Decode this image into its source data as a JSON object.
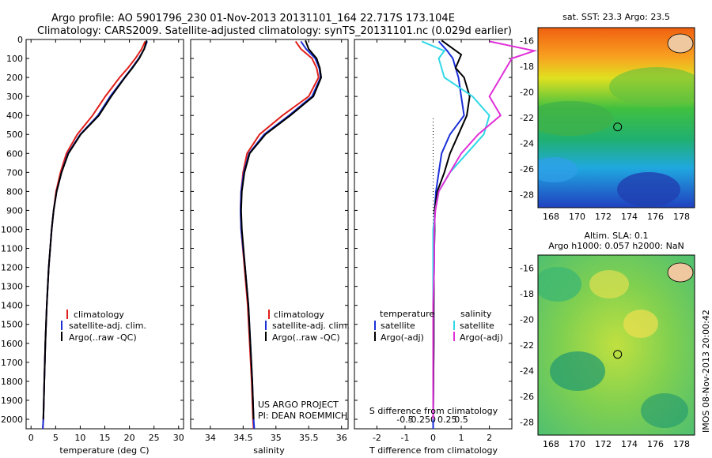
{
  "header": {
    "line1": "Argo profile: AO 5901796_230 01-Nov-2013 20131101_164 22.717S 173.104E",
    "line2": "Climatology: CARS2009. Satellite-adjusted climatology: synTS_20131101.nc (0.029d earlier)"
  },
  "credit": {
    "project": "US ARGO PROJECT",
    "pi": "PI: DEAN ROEMMICH",
    "stamp": "IMOS 08-Nov-2013 20:00:42"
  },
  "colors": {
    "climatology": "#e0201a",
    "satellite": "#1a2fd8",
    "argo": "#000000",
    "satellite_s": "#30d8e8",
    "argo_s": "#e030d8"
  },
  "chart_data": [
    {
      "type": "line",
      "id": "temperature",
      "xlabel": "temperature (deg C)",
      "xlim": [
        -1,
        31
      ],
      "ylim": [
        2050,
        0
      ],
      "x_ticks": [
        0,
        5,
        10,
        15,
        20,
        25,
        30
      ],
      "y_ticks": [
        0,
        100,
        200,
        300,
        400,
        500,
        600,
        700,
        800,
        900,
        1000,
        1100,
        1200,
        1300,
        1400,
        1500,
        1600,
        1700,
        1800,
        1900,
        2000
      ],
      "legend": [
        "climatology",
        "satellite-adj. clim.",
        "Argo(..raw -QC)"
      ],
      "series": [
        {
          "name": "climatology",
          "color_key": "climatology",
          "depth": [
            10,
            50,
            100,
            150,
            200,
            300,
            400,
            500,
            600,
            700,
            800,
            900,
            1000,
            1200,
            1400,
            1600,
            1800,
            2000,
            2050
          ],
          "values": [
            23.2,
            22.5,
            21.2,
            19.7,
            18.0,
            15.1,
            12.5,
            9.4,
            7.2,
            6.0,
            5.1,
            4.6,
            4.2,
            3.6,
            3.2,
            2.9,
            2.7,
            2.5,
            2.4
          ]
        },
        {
          "name": "satellite-adj. clim.",
          "color_key": "satellite",
          "depth": [
            10,
            50,
            100,
            150,
            200,
            300,
            400,
            500,
            600,
            700,
            800,
            900,
            1000,
            1200,
            1400,
            1600,
            1800,
            2000,
            2050
          ],
          "values": [
            23.6,
            23.0,
            21.9,
            20.5,
            19.0,
            16.1,
            13.6,
            10.0,
            7.5,
            6.2,
            5.2,
            4.6,
            4.2,
            3.6,
            3.2,
            2.9,
            2.7,
            2.5,
            2.4
          ]
        },
        {
          "name": "Argo(..raw -QC)",
          "color_key": "argo",
          "depth": [
            5,
            50,
            100,
            150,
            200,
            300,
            400,
            500,
            600,
            700,
            800,
            900,
            1000,
            1200,
            1400,
            1600,
            1800,
            2000
          ],
          "values": [
            23.5,
            23.0,
            22.0,
            20.6,
            19.1,
            16.3,
            13.8,
            10.1,
            7.6,
            6.2,
            5.2,
            4.6,
            4.2,
            3.6,
            3.2,
            2.9,
            2.7,
            2.5
          ]
        }
      ]
    },
    {
      "type": "line",
      "id": "salinity",
      "xlabel": "salinity",
      "xlim": [
        33.7,
        36.1
      ],
      "ylim": [
        2050,
        0
      ],
      "x_ticks": [
        34,
        34.5,
        35,
        35.5,
        36
      ],
      "legend": [
        "climatology",
        "satellite-adj. clim.",
        "Argo(..raw -QC)"
      ],
      "series": [
        {
          "name": "climatology",
          "color_key": "climatology",
          "depth": [
            10,
            50,
            100,
            150,
            200,
            300,
            400,
            500,
            600,
            700,
            800,
            900,
            1000,
            1200,
            1400,
            1600,
            1800,
            2000,
            2050
          ],
          "values": [
            35.3,
            35.38,
            35.55,
            35.62,
            35.65,
            35.5,
            35.1,
            34.75,
            34.56,
            34.5,
            34.47,
            34.46,
            34.47,
            34.52,
            34.57,
            34.6,
            34.63,
            34.65,
            34.66
          ]
        },
        {
          "name": "satellite-adj. clim.",
          "color_key": "satellite",
          "depth": [
            10,
            50,
            100,
            150,
            200,
            300,
            400,
            500,
            600,
            700,
            800,
            900,
            1000,
            1200,
            1400,
            1600,
            1800,
            2000,
            2050
          ],
          "values": [
            35.38,
            35.46,
            35.6,
            35.66,
            35.68,
            35.55,
            35.2,
            34.82,
            34.59,
            34.51,
            34.47,
            34.46,
            34.47,
            34.53,
            34.58,
            34.61,
            34.64,
            34.66,
            34.67
          ]
        },
        {
          "name": "Argo(..raw -QC)",
          "color_key": "argo",
          "depth": [
            5,
            50,
            100,
            150,
            200,
            300,
            400,
            500,
            600,
            700,
            800,
            900,
            1000,
            1200,
            1400,
            1600,
            1800,
            2000
          ],
          "values": [
            35.45,
            35.5,
            35.62,
            35.67,
            35.69,
            35.57,
            35.22,
            34.84,
            34.6,
            34.52,
            34.48,
            34.47,
            34.48,
            34.53,
            34.58,
            34.61,
            34.64,
            34.66
          ]
        }
      ]
    },
    {
      "type": "line",
      "id": "difference",
      "xlabel": "T difference from climatology",
      "xlabel2": "S difference from climatology",
      "xlim": [
        -2.8,
        2.8
      ],
      "ylim": [
        2050,
        0
      ],
      "x_ticks": [
        -2,
        -1,
        0,
        1,
        2
      ],
      "s_ticks": [
        "-0.5",
        "-0.25",
        "0",
        "0.25",
        "0.5"
      ],
      "legend_t_title": "temperature",
      "legend_s_title": "salinity",
      "legend_t": [
        "satellite",
        "Argo(-adj)"
      ],
      "legend_s": [
        "satellite",
        "Argo(-adj)"
      ],
      "series": [
        {
          "name": "satellite",
          "color_key": "satellite",
          "depth": [
            10,
            60,
            100,
            150,
            200,
            300,
            400,
            500,
            600,
            700,
            800,
            900,
            1000,
            1200,
            1400,
            1600,
            1800,
            2000,
            2050
          ],
          "values": [
            0.2,
            0.5,
            0.7,
            0.8,
            0.9,
            1.0,
            1.1,
            0.6,
            0.3,
            0.2,
            0.1,
            0.05,
            0.05,
            0.03,
            0.02,
            0.02,
            0.01,
            0.0,
            0.0
          ]
        },
        {
          "name": "Argo(-adj)",
          "color_key": "argo",
          "depth": [
            5,
            80,
            150,
            200,
            300,
            400,
            500,
            600,
            700,
            800,
            900,
            1000,
            1200,
            1400,
            1600,
            1800,
            2000
          ],
          "values": [
            0.3,
            1.0,
            0.8,
            1.1,
            1.3,
            1.2,
            0.9,
            0.6,
            0.4,
            0.15,
            0.05,
            0.05,
            0.03,
            0.02,
            0.02,
            0.01,
            0.0
          ]
        },
        {
          "name": "satellite",
          "color_key": "satellite_s",
          "depth": [
            10,
            60,
            100,
            200,
            300,
            400,
            500,
            600,
            700,
            800,
            900,
            1000,
            1200,
            1400,
            1600,
            1800,
            2000
          ],
          "values": [
            -0.1,
            0.1,
            0.05,
            0.1,
            0.35,
            0.5,
            0.45,
            0.3,
            0.15,
            0.05,
            0.02,
            0.0,
            0.0,
            0.0,
            0.0,
            0.0,
            0.0
          ]
        },
        {
          "name": "Argo(-adj)",
          "color_key": "argo_s",
          "depth": [
            10,
            60,
            100,
            200,
            300,
            400,
            500,
            600,
            700,
            800,
            900,
            1000,
            1200,
            1400,
            1600,
            1800,
            2000
          ],
          "values": [
            0.5,
            0.9,
            0.7,
            0.6,
            0.5,
            0.6,
            0.4,
            0.25,
            0.15,
            0.05,
            0.02,
            0.01,
            0.01,
            0.0,
            0.0,
            0.0,
            0.0
          ]
        }
      ]
    },
    {
      "type": "heatmap",
      "id": "sst_map",
      "title": "sat. SST: 23.3 Argo: 23.5",
      "x_ticks": [
        "168",
        "170",
        "172",
        "174",
        "176",
        "178"
      ],
      "y_ticks": [
        "-16",
        "-18",
        "-20",
        "-22",
        "-24",
        "-26",
        "-28"
      ],
      "xlim": [
        167,
        179
      ],
      "ylim": [
        -29,
        -15
      ],
      "float_position": {
        "lon": 173.104,
        "lat": -22.717
      }
    },
    {
      "type": "heatmap",
      "id": "sla_map",
      "title": "Altim. SLA: 0.1",
      "subtitle": "Argo h1000: 0.057 h2000: NaN",
      "x_ticks": [
        "168",
        "170",
        "172",
        "174",
        "176",
        "178"
      ],
      "y_ticks": [
        "-16",
        "-18",
        "-20",
        "-22",
        "-24",
        "-26",
        "-28"
      ],
      "xlim": [
        167,
        179
      ],
      "ylim": [
        -29,
        -15
      ],
      "float_position": {
        "lon": 173.104,
        "lat": -22.717
      }
    }
  ]
}
